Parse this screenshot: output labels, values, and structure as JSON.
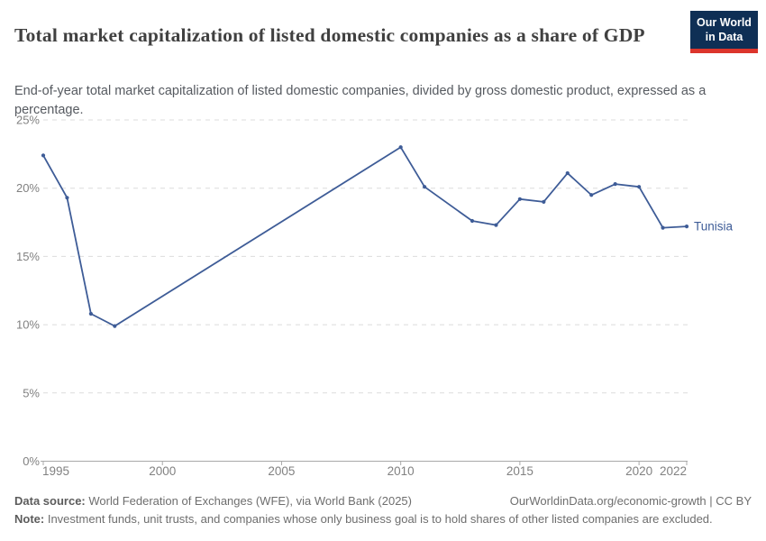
{
  "header": {
    "title": "Total market capitalization of listed domestic companies as a share of GDP",
    "subtitle": "End-of-year total market capitalization of listed domestic companies, divided by gross domestic product, expressed as a percentage.",
    "logo": {
      "line1": "Our World",
      "line2": "in Data",
      "bg_color": "#0f2f55",
      "bar_color": "#dc352c"
    }
  },
  "chart_data": {
    "type": "line",
    "title": "Total market capitalization of listed domestic companies as a share of GDP",
    "series": [
      {
        "name": "Tunisia",
        "color": "#3e5c97",
        "points": [
          {
            "x": 1995,
            "y": 22.4
          },
          {
            "x": 1996,
            "y": 19.3
          },
          {
            "x": 1997,
            "y": 10.8
          },
          {
            "x": 1998,
            "y": 9.9
          },
          {
            "x": 2010,
            "y": 23.0
          },
          {
            "x": 2011,
            "y": 20.1
          },
          {
            "x": 2013,
            "y": 17.6
          },
          {
            "x": 2014,
            "y": 17.3
          },
          {
            "x": 2015,
            "y": 19.2
          },
          {
            "x": 2016,
            "y": 19.0
          },
          {
            "x": 2017,
            "y": 21.1
          },
          {
            "x": 2018,
            "y": 19.5
          },
          {
            "x": 2019,
            "y": 20.3
          },
          {
            "x": 2020,
            "y": 20.1
          },
          {
            "x": 2021,
            "y": 17.1
          },
          {
            "x": 2022,
            "y": 17.2
          }
        ]
      }
    ],
    "x_ticks": [
      "1995",
      "2000",
      "2005",
      "2010",
      "2015",
      "2020",
      "2022"
    ],
    "y_ticks": [
      0,
      5,
      10,
      15,
      20,
      25
    ],
    "y_suffix": "%",
    "x_range": [
      1995,
      2022
    ],
    "y_range": [
      0,
      25
    ],
    "grid": "horizontal-dashed",
    "legend": "end-of-line-label",
    "colors": {
      "grid": "#dcdcdc",
      "axis": "#a8a8a8",
      "tick_label": "#818181"
    }
  },
  "footer": {
    "data_source_label": "Data source:",
    "data_source": "World Federation of Exchanges (WFE), via World Bank (2025)",
    "link": "OurWorldinData.org/economic-growth | CC BY",
    "note_label": "Note:",
    "note": "Investment funds, unit trusts, and companies whose only business goal is to hold shares of other listed companies are excluded."
  }
}
